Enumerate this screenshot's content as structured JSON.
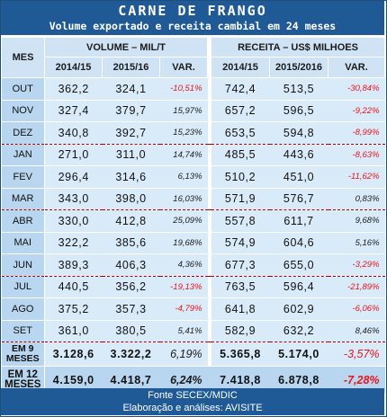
{
  "title": "CARNE DE FRANGO",
  "subtitle": "Volume exportado e receita cambial em 24 meses",
  "header": {
    "mes": "MES",
    "volume_group": "VOLUME – MIL/T",
    "receita_group": "RECEITA – US$ MILHOES",
    "vol_cols": [
      "2014/15",
      "2015/16",
      "VAR."
    ],
    "rec_cols": [
      "2014/15",
      "2015/2016",
      "VAR."
    ]
  },
  "rows": [
    {
      "mes": "OUT",
      "v1": "362,2",
      "v2": "324,1",
      "vv": "-10,51%",
      "r1": "742,4",
      "r2": "513,5",
      "rv": "-30,84%"
    },
    {
      "mes": "NOV",
      "v1": "327,4",
      "v2": "379,7",
      "vv": "15,97%",
      "r1": "657,2",
      "r2": "596,5",
      "rv": "-9,22%"
    },
    {
      "mes": "DEZ",
      "v1": "340,8",
      "v2": "392,7",
      "vv": "15,23%",
      "r1": "653,5",
      "r2": "594,8",
      "rv": "-8,99%"
    },
    {
      "mes": "JAN",
      "v1": "271,0",
      "v2": "311,0",
      "vv": "14,74%",
      "r1": "485,5",
      "r2": "443,6",
      "rv": "-8,63%"
    },
    {
      "mes": "FEV",
      "v1": "296,4",
      "v2": "314,6",
      "vv": "6,13%",
      "r1": "510,2",
      "r2": "451,0",
      "rv": "-11,62%"
    },
    {
      "mes": "MAR",
      "v1": "343,0",
      "v2": "398,0",
      "vv": "16,03%",
      "r1": "571,9",
      "r2": "576,7",
      "rv": "0,83%"
    },
    {
      "mes": "ABR",
      "v1": "330,0",
      "v2": "412,8",
      "vv": "25,09%",
      "r1": "557,8",
      "r2": "611,7",
      "rv": "9,68%"
    },
    {
      "mes": "MAI",
      "v1": "322,2",
      "v2": "385,6",
      "vv": "19,68%",
      "r1": "574,9",
      "r2": "604,6",
      "rv": "5,16%"
    },
    {
      "mes": "JUN",
      "v1": "389,3",
      "v2": "406,3",
      "vv": "4,36%",
      "r1": "677,3",
      "r2": "655,0",
      "rv": "-3,29%"
    },
    {
      "mes": "JUL",
      "v1": "440,5",
      "v2": "356,2",
      "vv": "-19,13%",
      "r1": "763,5",
      "r2": "596,4",
      "rv": "-21,89%"
    },
    {
      "mes": "AGO",
      "v1": "375,2",
      "v2": "357,3",
      "vv": "-4,79%",
      "r1": "641,8",
      "r2": "602,9",
      "rv": "-6,06%"
    },
    {
      "mes": "SET",
      "v1": "361,0",
      "v2": "380,5",
      "vv": "5,41%",
      "r1": "582,9",
      "r2": "632,2",
      "rv": "8,46%"
    }
  ],
  "totals": [
    {
      "mes": "EM 9 MESES",
      "v1": "3.128,6",
      "v2": "3.322,2",
      "vv": "6,19%",
      "r1": "5.365,8",
      "r2": "5.174,0",
      "rv": "-3,57%"
    },
    {
      "mes": "EM 12 MESES",
      "v1": "4.159,0",
      "v2": "4.418,7",
      "vv": "6,24%",
      "r1": "7.418,8",
      "r2": "6.878,8",
      "rv": "-7,28%"
    }
  ],
  "footer": {
    "line1": "Fonte SECEX/MDIC",
    "line2": "Elaboração e análises: AVISITE"
  },
  "colors": {
    "title_bg": "#1f5a96",
    "negative": "#e8141b",
    "cell_bg": "#d9eaf8",
    "header_bg": "#cfe3f5"
  }
}
